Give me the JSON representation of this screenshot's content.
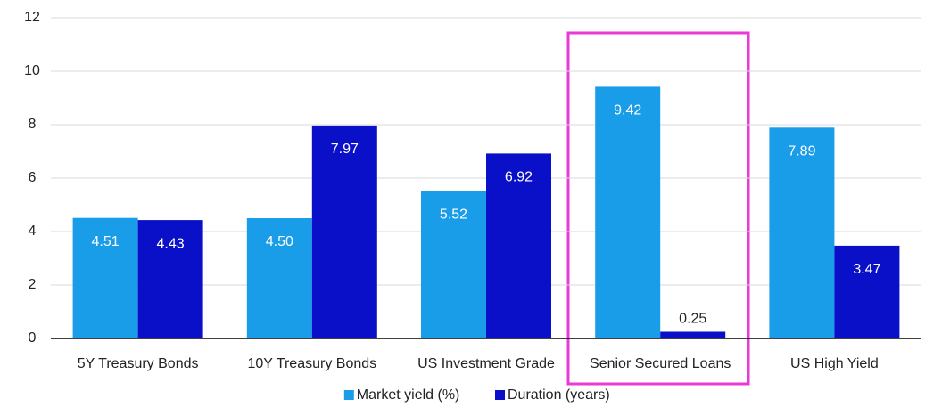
{
  "chart_data": {
    "type": "bar",
    "categories": [
      "5Y Treasury Bonds",
      "10Y Treasury Bonds",
      "US Investment Grade",
      "Senior Secured Loans",
      "US High Yield"
    ],
    "series": [
      {
        "name": "Market yield (%)",
        "color": "#1a9de8",
        "values": [
          4.51,
          4.5,
          5.52,
          9.42,
          7.89
        ],
        "value_labels": [
          "4.51",
          "4.50",
          "5.52",
          "9.42",
          "7.89"
        ]
      },
      {
        "name": "Duration (years)",
        "color": "#0a0fc8",
        "values": [
          4.43,
          7.97,
          6.92,
          0.25,
          3.47
        ],
        "value_labels": [
          "4.43",
          "7.97",
          "6.92",
          "0.25",
          "3.47"
        ]
      }
    ],
    "ylim": [
      0,
      12
    ],
    "yticks": [
      0,
      2,
      4,
      6,
      8,
      10,
      12
    ],
    "grid": true,
    "legend": "bottom"
  }
}
